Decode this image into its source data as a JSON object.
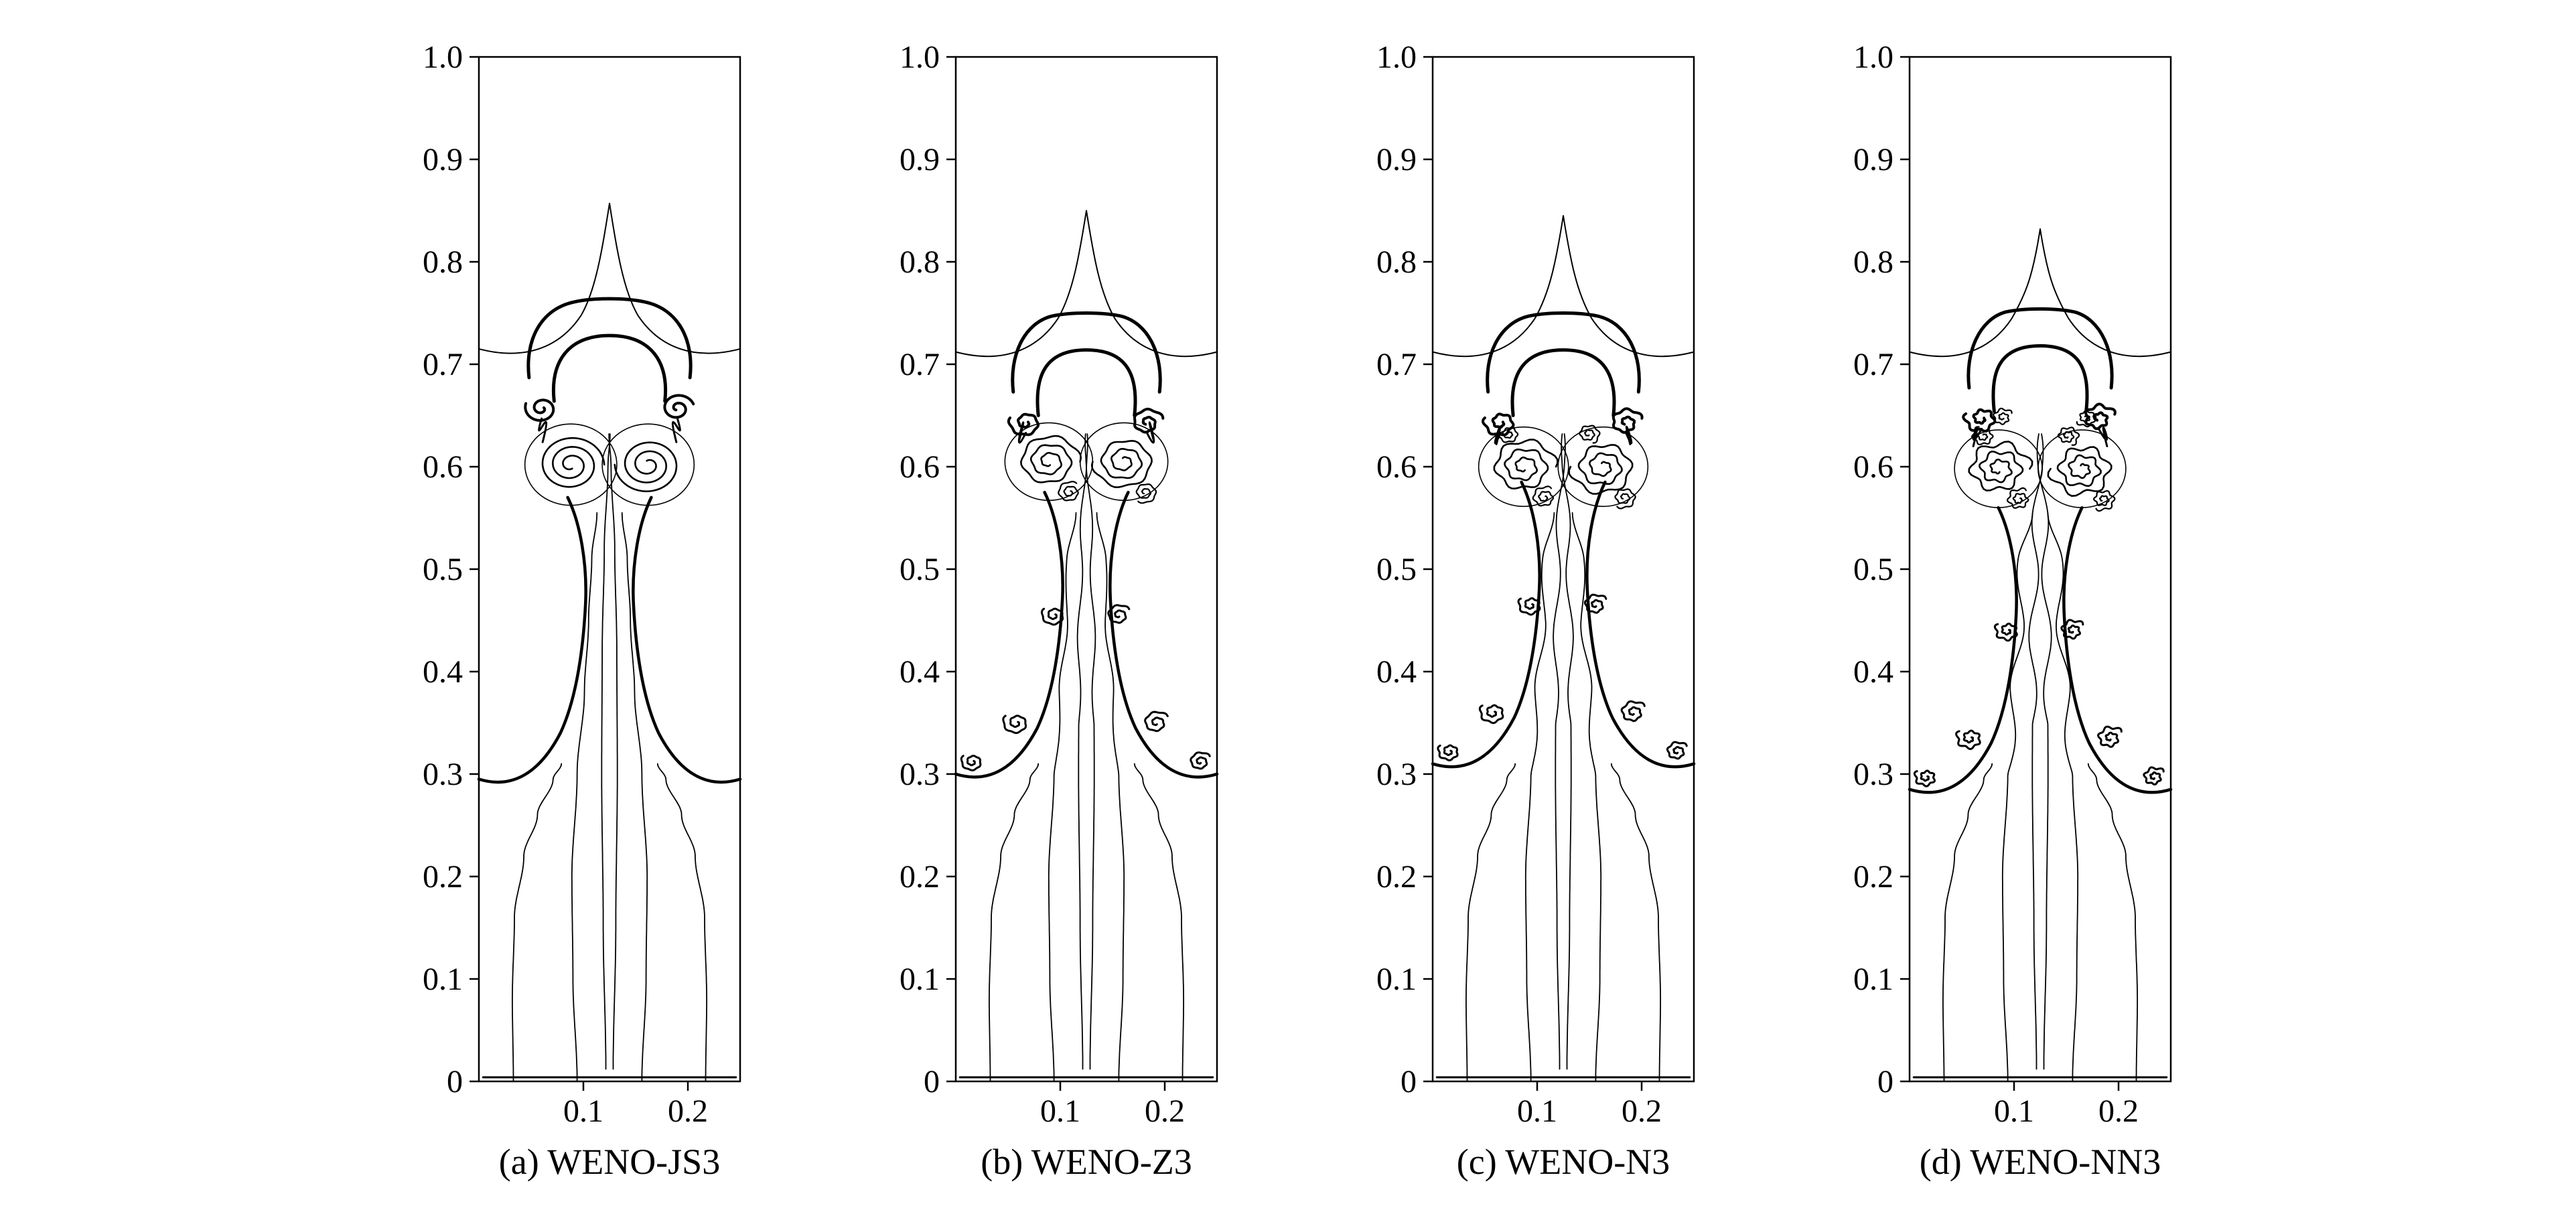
{
  "figure": {
    "background_color": "#ffffff",
    "line_color": "#000000",
    "description": "Density contours of a Rayleigh-Taylor instability computed with four third-order WENO schemes"
  },
  "chart_data": {
    "type": "contour",
    "title": "",
    "xlabel": "",
    "ylabel": "",
    "x_range": [
      0,
      0.25
    ],
    "y_range": [
      0,
      1
    ],
    "x_ticks": [
      "0.1",
      "0.2"
    ],
    "x_tick_values": [
      0.1,
      0.2
    ],
    "y_ticks": [
      "0",
      "0.1",
      "0.2",
      "0.3",
      "0.4",
      "0.5",
      "0.6",
      "0.7",
      "0.8",
      "0.9",
      "1.0"
    ],
    "y_tick_values": [
      0,
      0.1,
      0.2,
      0.3,
      0.4,
      0.5,
      0.6,
      0.7,
      0.8,
      0.9,
      1.0
    ],
    "grid": false,
    "legend": false,
    "panels": [
      {
        "id": "a",
        "label": "(a) WENO-JS3",
        "scheme": "WENO-JS3",
        "features": {
          "spike_apex_y": 0.857,
          "tent_wall_y": 0.715,
          "cap_top_y": 0.762,
          "cap_half_width": 0.077,
          "vortex_center_y": 0.602,
          "vortex_offset_x": 0.037,
          "vortex_radius": 0.032,
          "skirt_wall_y": 0.295,
          "stem_curls": false,
          "turbulence": 0
        }
      },
      {
        "id": "b",
        "label": "(b) WENO-Z3",
        "scheme": "WENO-Z3",
        "features": {
          "spike_apex_y": 0.85,
          "tent_wall_y": 0.712,
          "cap_top_y": 0.748,
          "cap_half_width": 0.07,
          "vortex_center_y": 0.605,
          "vortex_offset_x": 0.036,
          "vortex_radius": 0.03,
          "skirt_wall_y": 0.3,
          "stem_curls": true,
          "turbulence": 0.35
        }
      },
      {
        "id": "c",
        "label": "(c) WENO-N3",
        "scheme": "WENO-N3",
        "features": {
          "spike_apex_y": 0.845,
          "tent_wall_y": 0.712,
          "cap_top_y": 0.748,
          "cap_half_width": 0.072,
          "vortex_center_y": 0.6,
          "vortex_offset_x": 0.038,
          "vortex_radius": 0.031,
          "skirt_wall_y": 0.31,
          "stem_curls": true,
          "turbulence": 0.55
        }
      },
      {
        "id": "d",
        "label": "(d) WENO-NN3",
        "scheme": "WENO-NN3",
        "features": {
          "spike_apex_y": 0.832,
          "tent_wall_y": 0.712,
          "cap_top_y": 0.752,
          "cap_half_width": 0.068,
          "vortex_center_y": 0.598,
          "vortex_offset_x": 0.04,
          "vortex_radius": 0.03,
          "skirt_wall_y": 0.285,
          "stem_curls": true,
          "turbulence": 0.8
        }
      }
    ]
  }
}
